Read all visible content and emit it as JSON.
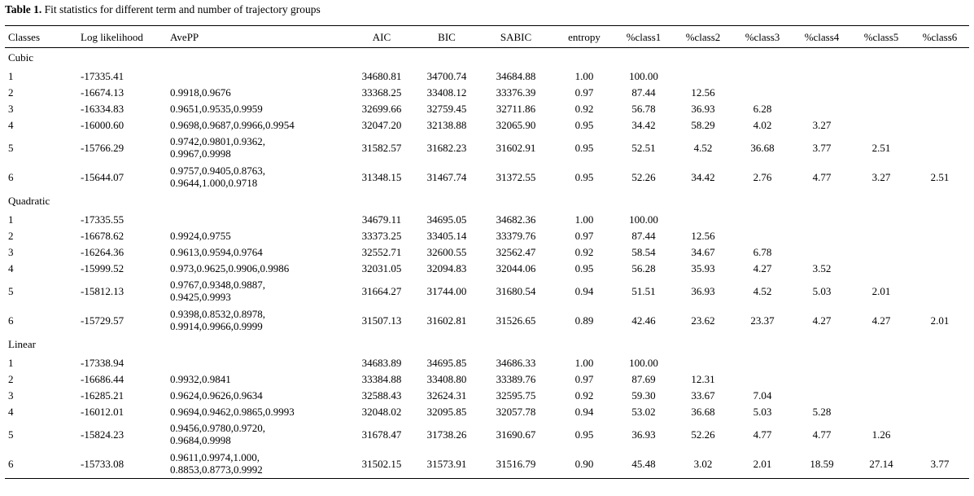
{
  "caption": {
    "label": "Table 1.",
    "text": " Fit statistics for different term and number of trajectory groups"
  },
  "columns": [
    "Classes",
    "Log likelihood",
    "AvePP",
    "AIC",
    "BIC",
    "SABIC",
    "entropy",
    "%class1",
    "%class2",
    "%class3",
    "%class4",
    "%class5",
    "%class6"
  ],
  "groups": [
    {
      "name": "Cubic",
      "rows": [
        {
          "classes": "1",
          "ll": "-17335.41",
          "avepp": [],
          "aic": "34680.81",
          "bic": "34700.74",
          "sabic": "34684.88",
          "entropy": "1.00",
          "pct": [
            "100.00",
            "",
            "",
            "",
            "",
            ""
          ]
        },
        {
          "classes": "2",
          "ll": "-16674.13",
          "avepp": [
            "0.9918,0.9676"
          ],
          "aic": "33368.25",
          "bic": "33408.12",
          "sabic": "33376.39",
          "entropy": "0.97",
          "pct": [
            "87.44",
            "12.56",
            "",
            "",
            "",
            ""
          ]
        },
        {
          "classes": "3",
          "ll": "-16334.83",
          "avepp": [
            "0.9651,0.9535,0.9959"
          ],
          "aic": "32699.66",
          "bic": "32759.45",
          "sabic": "32711.86",
          "entropy": "0.92",
          "pct": [
            "56.78",
            "36.93",
            "6.28",
            "",
            "",
            ""
          ]
        },
        {
          "classes": "4",
          "ll": "-16000.60",
          "avepp": [
            "0.9698,0.9687,0.9966,0.9954"
          ],
          "aic": "32047.20",
          "bic": "32138.88",
          "sabic": "32065.90",
          "entropy": "0.95",
          "pct": [
            "34.42",
            "58.29",
            "4.02",
            "3.27",
            "",
            ""
          ]
        },
        {
          "classes": "5",
          "ll": "-15766.29",
          "avepp": [
            "0.9742,0.9801,0.9362,",
            "0.9967,0.9998"
          ],
          "aic": "31582.57",
          "bic": "31682.23",
          "sabic": "31602.91",
          "entropy": "0.95",
          "pct": [
            "52.51",
            "4.52",
            "36.68",
            "3.77",
            "2.51",
            ""
          ]
        },
        {
          "classes": "6",
          "ll": "-15644.07",
          "avepp": [
            "0.9757,0.9405,0.8763,",
            "0.9644,1.000,0.9718"
          ],
          "aic": "31348.15",
          "bic": "31467.74",
          "sabic": "31372.55",
          "entropy": "0.95",
          "pct": [
            "52.26",
            "34.42",
            "2.76",
            "4.77",
            "3.27",
            "2.51"
          ]
        }
      ]
    },
    {
      "name": "Quadratic",
      "rows": [
        {
          "classes": "1",
          "ll": "-17335.55",
          "avepp": [],
          "aic": "34679.11",
          "bic": "34695.05",
          "sabic": "34682.36",
          "entropy": "1.00",
          "pct": [
            "100.00",
            "",
            "",
            "",
            "",
            ""
          ]
        },
        {
          "classes": "2",
          "ll": "-16678.62",
          "avepp": [
            "0.9924,0.9755"
          ],
          "aic": "33373.25",
          "bic": "33405.14",
          "sabic": "33379.76",
          "entropy": "0.97",
          "pct": [
            "87.44",
            "12.56",
            "",
            "",
            "",
            ""
          ]
        },
        {
          "classes": "3",
          "ll": "-16264.36",
          "avepp": [
            "0.9613,0.9594,0.9764"
          ],
          "aic": "32552.71",
          "bic": "32600.55",
          "sabic": "32562.47",
          "entropy": "0.92",
          "pct": [
            "58.54",
            "34.67",
            "6.78",
            "",
            "",
            ""
          ]
        },
        {
          "classes": "4",
          "ll": "-15999.52",
          "avepp": [
            "0.973,0.9625,0.9906,0.9986"
          ],
          "aic": "32031.05",
          "bic": "32094.83",
          "sabic": "32044.06",
          "entropy": "0.95",
          "pct": [
            "56.28",
            "35.93",
            "4.27",
            "3.52",
            "",
            ""
          ]
        },
        {
          "classes": "5",
          "ll": "-15812.13",
          "avepp": [
            "0.9767,0.9348,0.9887,",
            "0.9425,0.9993"
          ],
          "aic": "31664.27",
          "bic": "31744.00",
          "sabic": "31680.54",
          "entropy": "0.94",
          "pct": [
            "51.51",
            "36.93",
            "4.52",
            "5.03",
            "2.01",
            ""
          ]
        },
        {
          "classes": "6",
          "ll": "-15729.57",
          "avepp": [
            "0.9398,0.8532,0.8978,",
            "0.9914,0.9966,0.9999"
          ],
          "aic": "31507.13",
          "bic": "31602.81",
          "sabic": "31526.65",
          "entropy": "0.89",
          "pct": [
            "42.46",
            "23.62",
            "23.37",
            "4.27",
            "4.27",
            "2.01"
          ]
        }
      ]
    },
    {
      "name": "Linear",
      "rows": [
        {
          "classes": "1",
          "ll": "-17338.94",
          "avepp": [],
          "aic": "34683.89",
          "bic": "34695.85",
          "sabic": "34686.33",
          "entropy": "1.00",
          "pct": [
            "100.00",
            "",
            "",
            "",
            "",
            ""
          ]
        },
        {
          "classes": "2",
          "ll": "-16686.44",
          "avepp": [
            "0.9932,0.9841"
          ],
          "aic": "33384.88",
          "bic": "33408.80",
          "sabic": "33389.76",
          "entropy": "0.97",
          "pct": [
            "87.69",
            "12.31",
            "",
            "",
            "",
            ""
          ]
        },
        {
          "classes": "3",
          "ll": "-16285.21",
          "avepp": [
            "0.9624,0.9626,0.9634"
          ],
          "aic": "32588.43",
          "bic": "32624.31",
          "sabic": "32595.75",
          "entropy": "0.92",
          "pct": [
            "59.30",
            "33.67",
            "7.04",
            "",
            "",
            ""
          ]
        },
        {
          "classes": "4",
          "ll": "-16012.01",
          "avepp": [
            "0.9694,0.9462,0.9865,0.9993"
          ],
          "aic": "32048.02",
          "bic": "32095.85",
          "sabic": "32057.78",
          "entropy": "0.94",
          "pct": [
            "53.02",
            "36.68",
            "5.03",
            "5.28",
            "",
            ""
          ]
        },
        {
          "classes": "5",
          "ll": "-15824.23",
          "avepp": [
            "0.9456,0.9780,0.9720,",
            "0.9684,0.9998"
          ],
          "aic": "31678.47",
          "bic": "31738.26",
          "sabic": "31690.67",
          "entropy": "0.95",
          "pct": [
            "36.93",
            "52.26",
            "4.77",
            "4.77",
            "1.26",
            ""
          ]
        },
        {
          "classes": "6",
          "ll": "-15733.08",
          "avepp": [
            "0.9611,0.9974,1.000,",
            "0.8853,0.8773,0.9992"
          ],
          "aic": "31502.15",
          "bic": "31573.91",
          "sabic": "31516.79",
          "entropy": "0.90",
          "pct": [
            "45.48",
            "3.02",
            "2.01",
            "18.59",
            "27.14",
            "3.77"
          ]
        }
      ]
    }
  ]
}
